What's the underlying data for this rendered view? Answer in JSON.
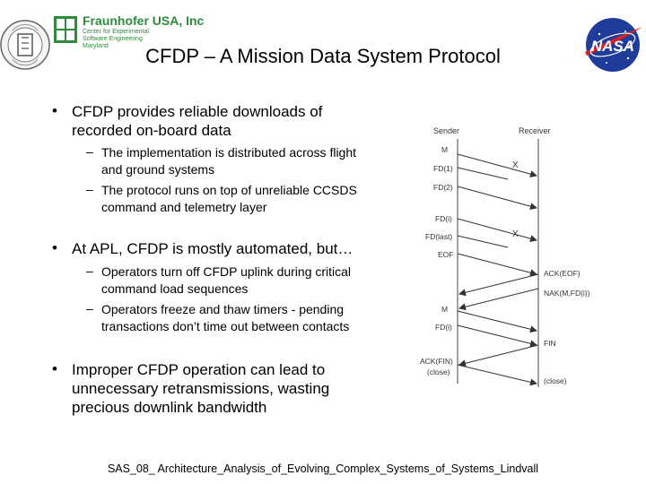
{
  "header": {
    "jhu_seal_letters": "THE JOHNS HOPKINS UNIVERSITY",
    "fraunhofer_name": "Fraunhofer USA, Inc",
    "fraunhofer_sub": [
      "Center for Experimental",
      "Software Engineering",
      "Maryland"
    ],
    "nasa_logo": "NASA"
  },
  "slide": {
    "title": "CFDP – A Mission Data System Protocol",
    "bullets": [
      {
        "lines": [
          "CFDP provides reliable downloads of",
          "recorded on-board data"
        ],
        "subs": [
          [
            "The implementation is distributed across flight",
            "and ground systems"
          ],
          [
            "The protocol runs on top of unreliable CCSDS",
            "command and telemetry layer"
          ]
        ]
      },
      {
        "lines": [
          "At APL, CFDP is mostly automated, but…"
        ],
        "subs": [
          [
            "Operators turn off CFDP uplink during critical",
            "command load sequences"
          ],
          [
            "Operators freeze and thaw timers - pending",
            "transactions don’t time out between contacts"
          ]
        ]
      },
      {
        "lines": [
          "Improper CFDP operation can lead to",
          "unnecessary retransmissions, wasting",
          "precious downlink bandwidth"
        ],
        "subs": []
      }
    ],
    "footer": "SAS_08_ Architecture_Analysis_of_Evolving_Complex_Systems_of_Systems_Lindvall"
  },
  "diagram": {
    "sender_label": "Sender",
    "receiver_label": "Receiver",
    "left_labels": [
      "M",
      "FD(1)",
      "FD(2)",
      "FD(i)",
      "FD(last)",
      "EOF",
      "M",
      "FD(i)",
      "ACK(FIN)",
      "(close)"
    ],
    "right_labels": [
      "ACK(EOF)",
      "NAK(M,FD(i))",
      "FIN",
      "(close)"
    ],
    "loss_marker": "X"
  }
}
